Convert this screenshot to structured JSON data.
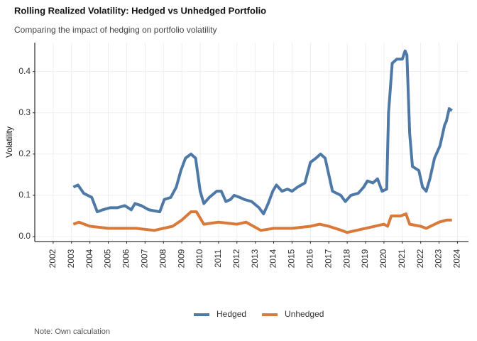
{
  "chart_data": {
    "type": "line",
    "title": "Rolling Realized Volatility: Hedged vs Unhedged Portfolio",
    "subtitle": "Comparing the impact of hedging on portfolio volatility",
    "y_label": "Volatility",
    "caption": "Note: Own calculation",
    "xlim": [
      2001,
      2024.6
    ],
    "xticks": [
      2002,
      2003,
      2004,
      2005,
      2006,
      2007,
      2008,
      2009,
      2010,
      2011,
      2012,
      2013,
      2014,
      2015,
      2016,
      2017,
      2018,
      2019,
      2020,
      2021,
      2022,
      2023,
      2024
    ],
    "ylim": [
      -0.012,
      0.47
    ],
    "yticks": [
      {
        "value": 0,
        "label": "0.0"
      },
      0.1,
      0.2,
      0.3,
      0.4
    ],
    "grid": true,
    "legend": "bottom",
    "series": [
      {
        "name": "Hedged",
        "color": "#4e79a7",
        "x": [
          2003.1,
          2003.35,
          2003.66,
          2004.1,
          2004.4,
          2004.7,
          2005.1,
          2005.5,
          2005.9,
          2006.25,
          2006.45,
          2006.8,
          2007.2,
          2007.8,
          2008.05,
          2008.4,
          2008.7,
          2008.95,
          2009.2,
          2009.5,
          2009.75,
          2010.0,
          2010.2,
          2010.5,
          2010.9,
          2011.15,
          2011.4,
          2011.65,
          2011.85,
          2012.15,
          2012.4,
          2012.8,
          2013.2,
          2013.45,
          2013.7,
          2013.95,
          2014.15,
          2014.45,
          2014.75,
          2015.0,
          2015.3,
          2015.7,
          2016.0,
          2016.3,
          2016.55,
          2016.8,
          2017.0,
          2017.2,
          2017.65,
          2017.9,
          2018.2,
          2018.6,
          2018.9,
          2019.1,
          2019.4,
          2019.65,
          2019.9,
          2020.15,
          2020.25,
          2020.45,
          2020.7,
          2021.0,
          2021.15,
          2021.25,
          2021.4,
          2021.55,
          2021.9,
          2022.1,
          2022.3,
          2022.5,
          2022.75,
          2023.05,
          2023.3,
          2023.4,
          2023.55,
          2023.7
        ],
        "values": [
          0.12,
          0.125,
          0.105,
          0.095,
          0.06,
          0.065,
          0.07,
          0.07,
          0.075,
          0.065,
          0.08,
          0.075,
          0.065,
          0.06,
          0.09,
          0.095,
          0.12,
          0.16,
          0.19,
          0.2,
          0.19,
          0.11,
          0.08,
          0.095,
          0.11,
          0.11,
          0.085,
          0.09,
          0.1,
          0.095,
          0.09,
          0.085,
          0.07,
          0.055,
          0.08,
          0.11,
          0.125,
          0.11,
          0.115,
          0.11,
          0.12,
          0.13,
          0.18,
          0.19,
          0.2,
          0.19,
          0.15,
          0.11,
          0.1,
          0.085,
          0.1,
          0.105,
          0.12,
          0.135,
          0.13,
          0.14,
          0.11,
          0.115,
          0.3,
          0.42,
          0.43,
          0.43,
          0.45,
          0.44,
          0.25,
          0.17,
          0.16,
          0.12,
          0.11,
          0.14,
          0.19,
          0.22,
          0.27,
          0.28,
          0.31,
          0.305
        ]
      },
      {
        "name": "Unhedged",
        "color": "#d9793a",
        "x": [
          2003.1,
          2003.4,
          2004.0,
          2005.0,
          2006.5,
          2007.5,
          2008.5,
          2009.0,
          2009.5,
          2009.8,
          2010.2,
          2011.0,
          2012.0,
          2012.5,
          2013.3,
          2014.0,
          2015.0,
          2016.0,
          2016.5,
          2017.0,
          2017.7,
          2018.0,
          2019.0,
          2020.0,
          2020.2,
          2020.4,
          2020.9,
          2021.2,
          2021.4,
          2022.0,
          2022.3,
          2023.0,
          2023.4,
          2023.7
        ],
        "values": [
          0.03,
          0.035,
          0.025,
          0.02,
          0.02,
          0.015,
          0.025,
          0.04,
          0.06,
          0.06,
          0.03,
          0.035,
          0.03,
          0.035,
          0.015,
          0.02,
          0.02,
          0.025,
          0.03,
          0.025,
          0.015,
          0.01,
          0.02,
          0.03,
          0.025,
          0.05,
          0.05,
          0.055,
          0.03,
          0.025,
          0.02,
          0.035,
          0.04,
          0.04
        ]
      }
    ]
  }
}
